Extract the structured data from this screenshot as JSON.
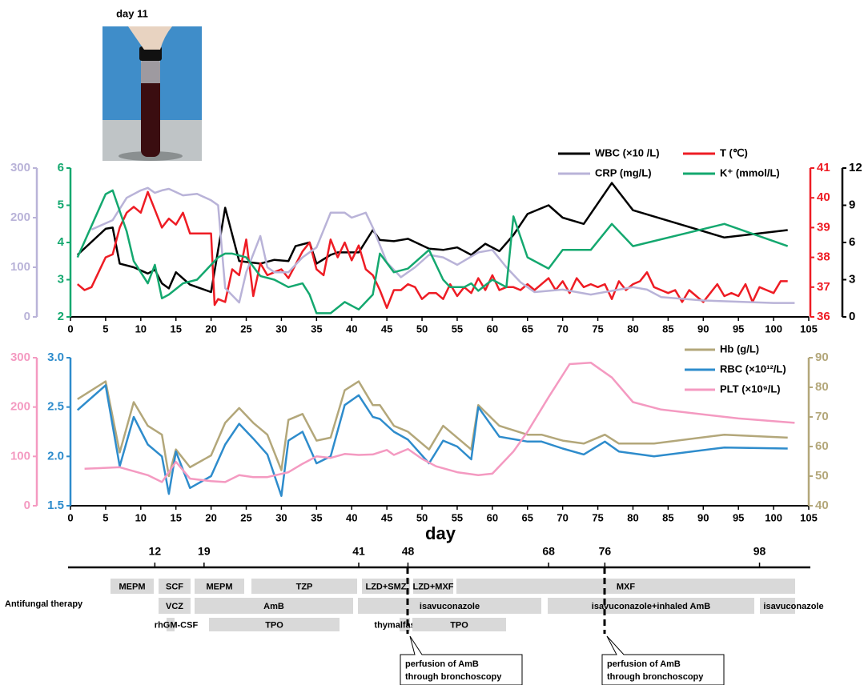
{
  "photo_label": "day 11",
  "chart_data": [
    {
      "type": "line",
      "xlim": [
        0,
        105
      ],
      "xticks": [
        0,
        5,
        10,
        15,
        20,
        25,
        30,
        35,
        40,
        45,
        50,
        55,
        60,
        65,
        70,
        75,
        80,
        85,
        90,
        95,
        100,
        105
      ],
      "series": [
        {
          "name": "WBC (×10 /L)",
          "color": "#000000",
          "ylim": [
            0,
            12
          ],
          "yticks": [
            0,
            3,
            6,
            9,
            12
          ],
          "x": [
            1,
            5,
            6,
            7,
            9,
            11,
            12,
            13,
            14,
            15,
            17,
            20,
            22,
            24,
            27,
            29,
            31,
            32,
            34,
            35,
            37,
            38,
            41,
            43,
            44,
            46,
            48,
            51,
            53,
            55,
            57,
            59,
            61,
            63,
            65,
            68,
            70,
            73,
            77,
            80,
            93,
            102
          ],
          "values": [
            5.0,
            7.1,
            7.2,
            4.3,
            4.0,
            3.5,
            3.8,
            2.7,
            2.3,
            3.6,
            2.6,
            2.0,
            8.8,
            4.5,
            4.3,
            4.6,
            4.5,
            5.7,
            6.0,
            4.3,
            5.0,
            5.2,
            5.2,
            7.0,
            6.2,
            6.1,
            6.3,
            5.5,
            5.4,
            5.6,
            5.0,
            5.9,
            5.3,
            6.6,
            8.3,
            9.0,
            8.0,
            7.5,
            10.8,
            8.6,
            6.4,
            7.0
          ]
        },
        {
          "name": "T (℃)",
          "color": "#ee1c24",
          "ylim": [
            36,
            41
          ],
          "yticks": [
            36,
            37,
            38,
            39,
            40,
            41
          ],
          "x": [
            1,
            2,
            3,
            5,
            6,
            7,
            8,
            9,
            10,
            11,
            12,
            13,
            14,
            15,
            16,
            17,
            20,
            20.5,
            21,
            22,
            23,
            24,
            25,
            26,
            27,
            28,
            29,
            30,
            31,
            33,
            34,
            35,
            36,
            37,
            38,
            39,
            40,
            41,
            42,
            43,
            44,
            45,
            46,
            47,
            48,
            49,
            50,
            51,
            52,
            53,
            54,
            55,
            56,
            57,
            58,
            59,
            60,
            61,
            62,
            63,
            64,
            65,
            66,
            67,
            68,
            69,
            70,
            71,
            72,
            73,
            74,
            75,
            76,
            77,
            78,
            79,
            80,
            81,
            82,
            83,
            84,
            85,
            86,
            87,
            88,
            89,
            90,
            91,
            92,
            93,
            94,
            95,
            96,
            97,
            98,
            99,
            100,
            101,
            102
          ],
          "values": [
            37.1,
            36.9,
            37.0,
            38.0,
            38.1,
            39.0,
            39.5,
            39.7,
            39.5,
            40.2,
            39.6,
            39.0,
            39.3,
            39.1,
            39.5,
            38.8,
            38.8,
            36.4,
            36.6,
            36.5,
            37.6,
            37.4,
            38.6,
            36.7,
            37.8,
            37.4,
            37.5,
            37.6,
            37.3,
            38.2,
            38.5,
            37.6,
            37.4,
            38.6,
            38.0,
            38.5,
            37.9,
            38.4,
            37.6,
            37.4,
            36.9,
            36.3,
            36.9,
            36.9,
            37.1,
            37.0,
            36.6,
            36.8,
            36.8,
            36.6,
            37.1,
            36.7,
            37.0,
            36.8,
            37.3,
            36.9,
            37.4,
            36.9,
            37.0,
            37.0,
            36.9,
            37.1,
            36.9,
            37.1,
            37.3,
            36.9,
            37.2,
            36.8,
            37.3,
            37.0,
            37.1,
            37.0,
            37.1,
            36.6,
            37.2,
            36.9,
            37.1,
            37.2,
            37.5,
            37.0,
            36.9,
            36.8,
            36.9,
            36.5,
            36.9,
            36.7,
            36.5,
            36.8,
            37.1,
            36.7,
            36.8,
            36.7,
            37.1,
            36.5,
            37.0,
            36.9,
            36.8,
            37.2,
            37.2
          ]
        },
        {
          "name": "CRP (mg/L)",
          "color": "#b9b3d8",
          "ylim": [
            0,
            300
          ],
          "yticks": [
            0,
            100,
            200,
            300
          ],
          "x": [
            3,
            6,
            8,
            10,
            11,
            12,
            13,
            14,
            16,
            18,
            20,
            21,
            22,
            24,
            25,
            27,
            28,
            29,
            31,
            33,
            35,
            37,
            39,
            40,
            42,
            43,
            45,
            47,
            49,
            51,
            53,
            55,
            58,
            60,
            62,
            64,
            66,
            70,
            74,
            80,
            82,
            84,
            90,
            100,
            103
          ],
          "values": [
            176,
            195,
            240,
            255,
            260,
            250,
            255,
            258,
            245,
            248,
            235,
            225,
            58,
            29,
            90,
            163,
            100,
            90,
            90,
            120,
            140,
            210,
            210,
            200,
            210,
            180,
            110,
            80,
            100,
            125,
            120,
            105,
            130,
            135,
            100,
            70,
            50,
            55,
            45,
            60,
            55,
            40,
            33,
            28,
            28
          ]
        },
        {
          "name": "K⁺ (mmol/L)",
          "color": "#14a86f",
          "ylim": [
            2,
            6
          ],
          "yticks": [
            2,
            3,
            4,
            5,
            6
          ],
          "x": [
            1,
            5,
            6,
            8,
            9,
            11,
            12,
            13,
            14,
            16,
            18,
            21,
            22,
            23,
            25,
            27,
            29,
            31,
            33,
            34,
            35,
            37,
            39,
            41,
            43,
            44,
            46,
            48,
            51,
            53,
            54,
            56,
            57,
            58,
            60,
            62,
            63,
            65,
            68,
            70,
            74,
            77,
            80,
            93,
            102
          ],
          "values": [
            3.6,
            5.3,
            5.4,
            4.3,
            3.5,
            2.9,
            3.4,
            2.5,
            2.6,
            2.9,
            3.0,
            3.6,
            3.7,
            3.7,
            3.6,
            3.1,
            3.0,
            2.8,
            2.9,
            2.6,
            2.1,
            2.1,
            2.4,
            2.2,
            2.6,
            3.7,
            3.2,
            3.3,
            3.8,
            3.0,
            2.8,
            2.8,
            2.9,
            2.7,
            3.0,
            2.8,
            4.7,
            3.6,
            3.3,
            3.8,
            3.8,
            4.5,
            3.9,
            4.5,
            3.9
          ]
        }
      ]
    },
    {
      "type": "line",
      "xlim": [
        0,
        105
      ],
      "xticks": [
        0,
        5,
        10,
        15,
        20,
        25,
        30,
        35,
        40,
        45,
        50,
        55,
        60,
        65,
        70,
        75,
        80,
        85,
        90,
        95,
        100,
        105
      ],
      "x_label": "day",
      "series": [
        {
          "name": "Hb (g/L)",
          "color": "#b3a77a",
          "ylim": [
            40,
            90
          ],
          "yticks": [
            40,
            50,
            60,
            70,
            80,
            90
          ],
          "x": [
            1,
            5,
            7,
            9,
            11,
            13,
            14,
            15,
            17,
            20,
            22,
            24,
            26,
            28,
            30,
            31,
            33,
            35,
            37,
            39,
            41,
            43,
            44,
            46,
            48,
            51,
            53,
            55,
            57,
            58,
            61,
            65,
            67,
            70,
            73,
            76,
            78,
            83,
            93,
            102
          ],
          "values": [
            76,
            82,
            58,
            75,
            67,
            64,
            50,
            59,
            53,
            57,
            68,
            73,
            68,
            64,
            52,
            69,
            71,
            62,
            63,
            79,
            82,
            74,
            74,
            67,
            65,
            59,
            67,
            63,
            59,
            74,
            67,
            64,
            64,
            62,
            61,
            64,
            61,
            61,
            64,
            63
          ]
        },
        {
          "name": "RBC (×10¹²/L)",
          "color": "#2e8ccc",
          "ylim": [
            1.5,
            3.0
          ],
          "yticks": [
            1.5,
            {
              "value": 2,
              "label": "2.0"
            },
            2.5,
            {
              "value": 3,
              "label": "3.0"
            }
          ],
          "x": [
            1,
            5,
            7,
            9,
            11,
            13,
            14,
            15,
            17,
            20,
            22,
            24,
            26,
            28,
            30,
            31,
            33,
            35,
            37,
            39,
            41,
            43,
            44,
            46,
            48,
            51,
            53,
            55,
            57,
            58,
            61,
            65,
            67,
            70,
            73,
            76,
            78,
            83,
            93,
            102
          ],
          "values": [
            2.47,
            2.72,
            1.9,
            2.4,
            2.12,
            2.0,
            1.62,
            2.05,
            1.68,
            1.8,
            2.12,
            2.33,
            2.18,
            2.02,
            1.6,
            2.16,
            2.25,
            1.93,
            2.0,
            2.52,
            2.62,
            2.4,
            2.38,
            2.25,
            2.17,
            1.93,
            2.16,
            2.1,
            1.97,
            2.5,
            2.2,
            2.15,
            2.15,
            2.08,
            2.02,
            2.15,
            2.05,
            2.0,
            2.09,
            2.08
          ]
        },
        {
          "name": "PLT (×10⁹/L)",
          "color": "#f49ac1",
          "ylim": [
            0,
            300
          ],
          "yticks": [
            0,
            100,
            200,
            300
          ],
          "x": [
            2,
            7,
            9,
            11,
            13,
            15,
            17,
            20,
            22,
            24,
            26,
            28,
            31,
            33,
            35,
            37,
            39,
            41,
            43,
            45,
            46,
            48,
            50,
            52,
            55,
            58,
            60,
            63,
            65,
            68,
            71,
            74,
            77,
            80,
            84,
            95,
            103
          ],
          "values": [
            75,
            78,
            70,
            62,
            48,
            89,
            55,
            50,
            48,
            62,
            58,
            58,
            68,
            85,
            100,
            97,
            105,
            103,
            104,
            113,
            103,
            115,
            95,
            80,
            68,
            62,
            65,
            110,
            150,
            220,
            287,
            290,
            260,
            210,
            195,
            177,
            168
          ]
        }
      ]
    }
  ],
  "timeline": {
    "days": [
      12,
      19,
      41,
      48,
      68,
      76,
      98
    ],
    "row_label": "Antifungal therapy",
    "rows": [
      [
        "MEPM",
        "SCF",
        "MEPM",
        "TZP",
        "LZD+SMZ",
        "LZD+MXF",
        "MXF"
      ],
      [
        "VCZ",
        "AmB",
        "isavuconazole",
        "isavuconazole+inhaled AmB",
        "isavuconazole"
      ],
      [
        "rhGM-CSF",
        "TPO",
        "thymalfasin",
        "TPO"
      ]
    ],
    "callouts": [
      [
        "perfusion of AmB",
        "through bronchoscopy"
      ],
      [
        "perfusion of AmB",
        "through bronchoscopy"
      ]
    ]
  }
}
